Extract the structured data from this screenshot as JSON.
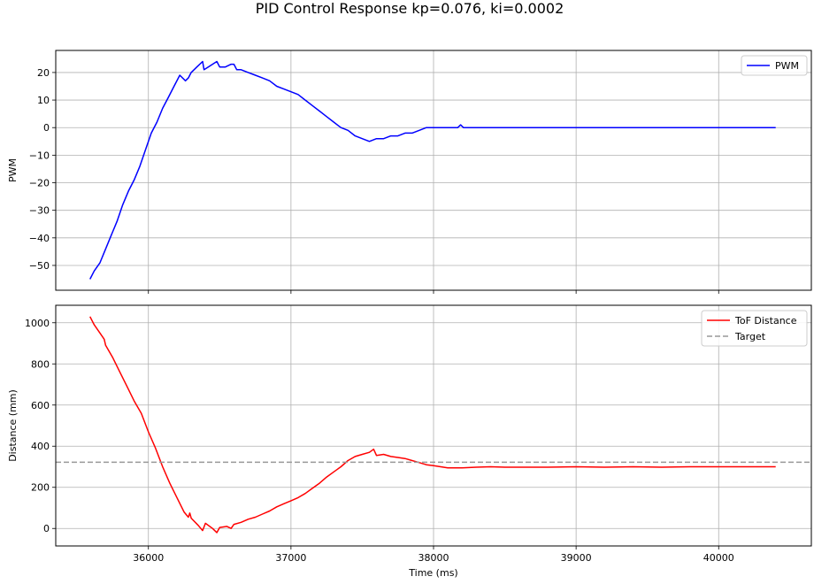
{
  "figure": {
    "title": "PID Control Response kp=0.076, ki=0.0002"
  },
  "chart_data": [
    {
      "type": "line",
      "ylabel": "PWM",
      "xlabel": "",
      "xlim": [
        35350,
        40650
      ],
      "ylim": [
        -59,
        28
      ],
      "xticks": [
        36000,
        37000,
        38000,
        39000,
        40000
      ],
      "yticks": [
        -50,
        -40,
        -30,
        -20,
        -10,
        0,
        10,
        20
      ],
      "ytick_labels": [
        "−50",
        "−40",
        "−30",
        "−20",
        "−10",
        "0",
        "10",
        "20"
      ],
      "grid": true,
      "legend_position": "top-right",
      "series": [
        {
          "name": "PWM",
          "color": "#0000ff",
          "x": [
            35590,
            35620,
            35660,
            35700,
            35740,
            35780,
            35820,
            35860,
            35900,
            35940,
            35980,
            36020,
            36060,
            36100,
            36140,
            36180,
            36220,
            36260,
            36280,
            36300,
            36340,
            36380,
            36390,
            36420,
            36450,
            36480,
            36500,
            36540,
            36580,
            36600,
            36620,
            36650,
            36700,
            36750,
            36800,
            36850,
            36900,
            36950,
            37000,
            37050,
            37100,
            37150,
            37200,
            37250,
            37300,
            37350,
            37400,
            37450,
            37500,
            37550,
            37600,
            37650,
            37700,
            37750,
            37800,
            37850,
            37900,
            37950,
            38000,
            38100,
            38170,
            38190,
            38210,
            38300,
            38500,
            39000,
            39500,
            40000,
            40400
          ],
          "values": [
            -55,
            -52,
            -49,
            -44,
            -39,
            -34,
            -28,
            -23,
            -19,
            -14,
            -8,
            -2,
            2,
            7,
            11,
            15,
            19,
            17,
            18,
            20,
            22,
            24,
            21,
            22,
            23,
            24,
            22,
            22,
            23,
            23,
            21,
            21,
            20,
            19,
            18,
            17,
            15,
            14,
            13,
            12,
            10,
            8,
            6,
            4,
            2,
            0,
            -1,
            -3,
            -4,
            -5,
            -4,
            -4,
            -3,
            -3,
            -2,
            -2,
            -1,
            0,
            0,
            0,
            0,
            1,
            0,
            0,
            0,
            0,
            0,
            0,
            0
          ]
        }
      ]
    },
    {
      "type": "line",
      "ylabel": "Distance (mm)",
      "xlabel": "Time (ms)",
      "xlim": [
        35350,
        40650
      ],
      "ylim": [
        -85,
        1085
      ],
      "xticks": [
        36000,
        37000,
        38000,
        39000,
        40000
      ],
      "yticks": [
        0,
        200,
        400,
        600,
        800,
        1000
      ],
      "grid": true,
      "legend_position": "top-right",
      "series": [
        {
          "name": "ToF Distance",
          "color": "#ff0000",
          "x": [
            35590,
            35620,
            35660,
            35690,
            35700,
            35750,
            35800,
            35850,
            35900,
            35950,
            36000,
            36050,
            36100,
            36150,
            36200,
            36250,
            36280,
            36290,
            36300,
            36350,
            36380,
            36400,
            36450,
            36480,
            36500,
            36550,
            36580,
            36600,
            36650,
            36700,
            36750,
            36800,
            36850,
            36900,
            36950,
            37000,
            37050,
            37100,
            37150,
            37200,
            37250,
            37300,
            37350,
            37400,
            37450,
            37500,
            37550,
            37580,
            37600,
            37650,
            37700,
            37750,
            37800,
            37850,
            37900,
            37950,
            38000,
            38100,
            38200,
            38300,
            38400,
            38500,
            38600,
            38800,
            39000,
            39200,
            39400,
            39600,
            39800,
            40000,
            40200,
            40400
          ],
          "values": [
            1030,
            990,
            950,
            920,
            890,
            830,
            760,
            690,
            620,
            560,
            470,
            390,
            300,
            220,
            150,
            80,
            55,
            75,
            50,
            15,
            -10,
            25,
            0,
            -20,
            5,
            10,
            0,
            20,
            30,
            45,
            55,
            70,
            85,
            105,
            120,
            135,
            150,
            170,
            195,
            220,
            250,
            275,
            300,
            330,
            350,
            360,
            370,
            385,
            355,
            360,
            350,
            345,
            340,
            330,
            320,
            310,
            305,
            295,
            295,
            298,
            300,
            298,
            298,
            298,
            300,
            298,
            300,
            298,
            300,
            300,
            300,
            300
          ]
        },
        {
          "name": "Target",
          "color": "#999999",
          "dashed": true,
          "value": 322
        }
      ]
    }
  ]
}
